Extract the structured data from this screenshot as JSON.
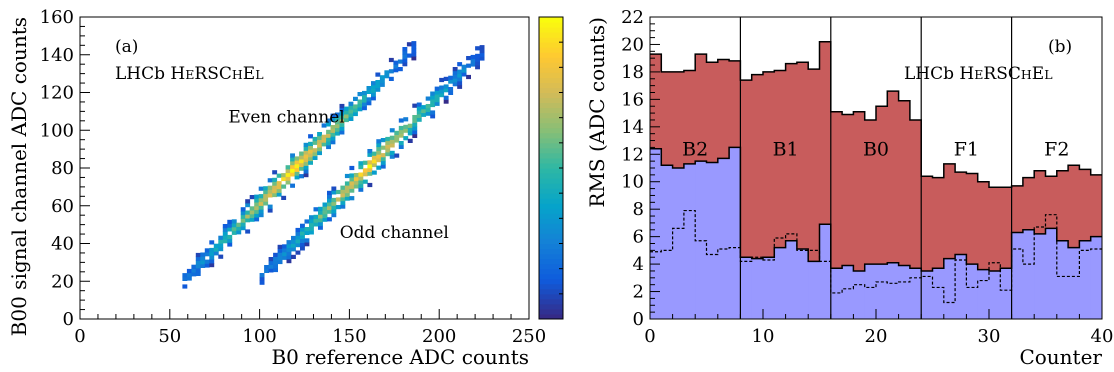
{
  "chart_data": [
    {
      "type": "heatmap",
      "panel_label": "(a)",
      "experiment_label": "LHCb HERSCHEL",
      "xlabel": "B0 reference ADC counts",
      "ylabel": "B00 signal channel ADC counts",
      "zlabel": "RMS (ADC counts)",
      "xlim": [
        0,
        250
      ],
      "ylim": [
        0,
        160
      ],
      "xticks": [
        0,
        50,
        100,
        150,
        200,
        250
      ],
      "yticks": [
        0,
        20,
        40,
        60,
        80,
        100,
        120,
        140,
        160
      ],
      "annotations": [
        {
          "text": "Even channel",
          "x": 115,
          "y": 104
        },
        {
          "text": "Odd channel",
          "x": 175,
          "y": 43
        }
      ],
      "bands": [
        {
          "name": "Even channel",
          "x_range": [
            57,
            185
          ],
          "y_at_xmin": 20,
          "y_at_xmax": 143,
          "peak_x": 118,
          "peak_density": 1.0
        },
        {
          "name": "Odd channel",
          "x_range": [
            100,
            225
          ],
          "y_at_xmin": 22,
          "y_at_xmax": 143,
          "peak_x": 160,
          "peak_density": 0.95
        }
      ],
      "colorscale": [
        "#352a87",
        "#0f5cdd",
        "#1481d6",
        "#06a4ca",
        "#2eb7a4",
        "#87bf77",
        "#d1bb59",
        "#fec832",
        "#f9fb0e"
      ]
    },
    {
      "type": "bar",
      "panel_label": "(b)",
      "experiment_label": "LHCb HERSCHEL",
      "xlabel": "Counter",
      "ylabel": "",
      "xlim": [
        0,
        40
      ],
      "ylim": [
        0,
        22
      ],
      "xticks": [
        0,
        10,
        20,
        30,
        40
      ],
      "yticks": [
        0,
        2,
        4,
        6,
        8,
        10,
        12,
        14,
        16,
        18,
        20,
        22
      ],
      "station_boundaries": [
        8,
        16,
        24,
        32
      ],
      "station_labels": [
        "B2",
        "B1",
        "B0",
        "F1",
        "F2"
      ],
      "station_label_y": 11.9,
      "series": [
        {
          "role": "red-fill",
          "color": "#c85c5c",
          "values": [
            19.3,
            18.0,
            18.0,
            18.1,
            19.3,
            18.7,
            18.9,
            18.8,
            17.4,
            17.8,
            18.0,
            18.1,
            18.6,
            18.7,
            18.2,
            20.2,
            15.1,
            14.9,
            15.1,
            14.5,
            15.5,
            16.6,
            15.9,
            14.5,
            10.4,
            10.3,
            11.3,
            10.7,
            10.6,
            10.0,
            9.6,
            9.6,
            9.7,
            10.3,
            10.8,
            10.4,
            10.8,
            11.2,
            10.9,
            10.5
          ]
        },
        {
          "role": "blue-fill",
          "color": "#9999ff",
          "values": [
            12.4,
            11.2,
            11.0,
            11.3,
            11.5,
            11.4,
            11.7,
            12.5,
            4.5,
            4.4,
            4.5,
            5.2,
            5.7,
            5.1,
            4.2,
            6.9,
            3.7,
            3.9,
            3.5,
            4.0,
            4.0,
            4.1,
            3.9,
            3.7,
            3.5,
            3.7,
            4.4,
            4.7,
            4.0,
            3.6,
            3.5,
            3.7,
            6.3,
            6.5,
            6.2,
            6.6,
            5.7,
            5.2,
            5.7,
            6.0
          ]
        },
        {
          "role": "dashed-line",
          "color": "#000000",
          "values": [
            4.9,
            5.0,
            6.6,
            7.9,
            5.7,
            4.7,
            5.1,
            5.2,
            4.2,
            4.5,
            4.3,
            5.9,
            6.2,
            5.0,
            5.0,
            4.2,
            1.9,
            2.2,
            2.5,
            2.3,
            2.7,
            2.6,
            2.7,
            3.0,
            3.1,
            2.3,
            1.2,
            4.3,
            2.3,
            2.8,
            4.1,
            2.1,
            5.1,
            4.0,
            6.7,
            7.6,
            3.1,
            3.1,
            5.0,
            5.1
          ]
        }
      ]
    }
  ]
}
